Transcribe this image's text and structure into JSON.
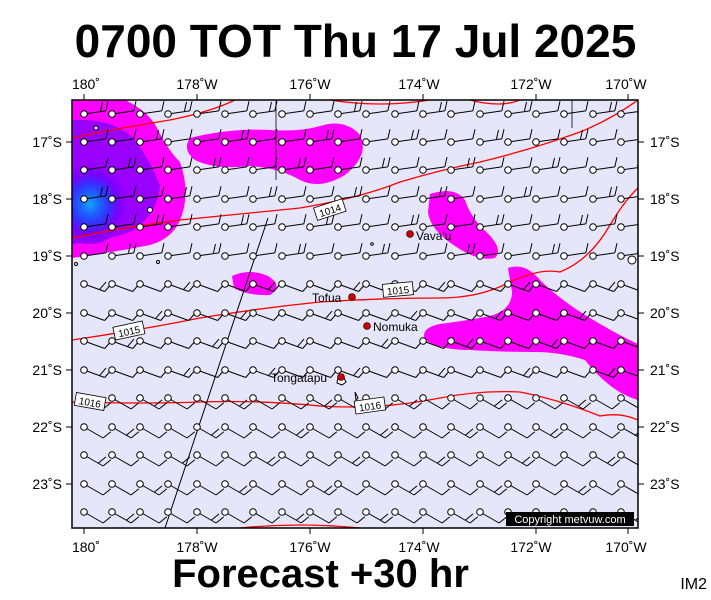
{
  "title": "0700 TOT Thu 17 Jul 2025",
  "footer": "Forecast +30 hr",
  "image_id": "IM2",
  "copyright": "Copyright metvuw.com",
  "colors": {
    "ocean": "#e6e6fb",
    "rain_light": "#ff00ff",
    "rain_mid": "#9a00ff",
    "rain_heavy": "#3333ff",
    "rain_peak": "#1aa3ff",
    "isobar": "#ff0000",
    "place_dot": "#cc0000"
  },
  "longitude_labels": [
    "180˚",
    "178˚W",
    "176˚W",
    "174˚W",
    "172˚W",
    "170˚W"
  ],
  "latitude_labels": [
    "17˚S",
    "18˚S",
    "19˚S",
    "20˚S",
    "21˚S",
    "22˚S",
    "23˚S"
  ],
  "places": [
    {
      "name": "Vava'u",
      "lon": -174.0,
      "lat": -18.65
    },
    {
      "name": "Tofua",
      "lon": -175.05,
      "lat": -19.75
    },
    {
      "name": "Nomuka",
      "lon": -174.8,
      "lat": -20.25
    },
    {
      "name": "Tongatapu",
      "lon": -175.2,
      "lat": -21.15
    }
  ],
  "isobars": [
    {
      "label": "1014"
    },
    {
      "label": "1015"
    },
    {
      "label": "1015"
    },
    {
      "label": "1016"
    },
    {
      "label": "1016"
    }
  ],
  "map_extent": {
    "lon_west": 180.0,
    "lon_east": -169.8,
    "lat_north": -16.3,
    "lat_south": -23.6
  }
}
